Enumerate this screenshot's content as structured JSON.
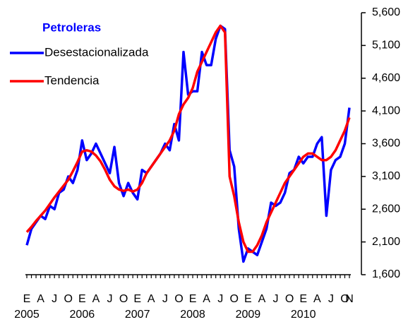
{
  "chart_data": {
    "type": "line",
    "title": "Petroleras",
    "categories": [
      "E",
      null,
      null,
      "A",
      null,
      null,
      "J",
      null,
      null,
      "O",
      null,
      null,
      "E",
      null,
      null,
      "A",
      null,
      null,
      "J",
      null,
      null,
      "O",
      null,
      null,
      "E",
      null,
      null,
      "A",
      null,
      null,
      "J",
      null,
      null,
      "O",
      null,
      null,
      "E",
      null,
      null,
      "A",
      null,
      null,
      "J",
      null,
      null,
      "O",
      null,
      null,
      "E",
      null,
      null,
      "A",
      null,
      null,
      "J",
      null,
      null,
      "O",
      null,
      null,
      "E",
      null,
      null,
      "A",
      null,
      null,
      "J",
      null,
      null,
      "O",
      "N"
    ],
    "years": [
      "2005",
      "2006",
      "2007",
      "2008",
      "2009",
      "2010"
    ],
    "series": [
      {
        "name": "Desestacionalizada",
        "color": "#0000ff",
        "values": [
          2050,
          2300,
          2400,
          2500,
          2450,
          2650,
          2600,
          2850,
          2900,
          3100,
          3000,
          3200,
          3650,
          3350,
          3450,
          3600,
          3450,
          3300,
          3150,
          3550,
          3000,
          2800,
          3000,
          2850,
          2750,
          3200,
          3150,
          3250,
          3350,
          3450,
          3600,
          3500,
          3900,
          3650,
          5000,
          4350,
          4400,
          4400,
          5000,
          4800,
          4800,
          5200,
          5400,
          5350,
          3500,
          3250,
          2300,
          1800,
          2000,
          1950,
          1900,
          2100,
          2300,
          2700,
          2650,
          2700,
          2850,
          3150,
          3200,
          3400,
          3300,
          3400,
          3400,
          3600,
          3700,
          2500,
          3200,
          3350,
          3400,
          3600,
          4150
        ]
      },
      {
        "name": "Tendencia",
        "color": "#ff0000",
        "values": [
          2250,
          2330,
          2420,
          2500,
          2580,
          2680,
          2780,
          2870,
          2960,
          3050,
          3180,
          3320,
          3480,
          3500,
          3480,
          3420,
          3330,
          3200,
          3050,
          2950,
          2900,
          2880,
          2900,
          2870,
          2900,
          3000,
          3150,
          3250,
          3350,
          3450,
          3550,
          3650,
          3800,
          4050,
          4200,
          4300,
          4450,
          4700,
          4850,
          5000,
          5150,
          5300,
          5400,
          5300,
          3100,
          2800,
          2400,
          2100,
          1950,
          1950,
          2050,
          2200,
          2400,
          2550,
          2700,
          2850,
          3000,
          3100,
          3200,
          3300,
          3400,
          3450,
          3450,
          3400,
          3350,
          3350,
          3400,
          3500,
          3650,
          3800,
          4000
        ]
      }
    ],
    "ylim": [
      1600,
      5600
    ],
    "yticks": [
      {
        "value": 1600,
        "label": "1,600"
      },
      {
        "value": 2100,
        "label": "2,100"
      },
      {
        "value": 2600,
        "label": "2,600"
      },
      {
        "value": 3100,
        "label": "3,100"
      },
      {
        "value": 3600,
        "label": "3,600"
      },
      {
        "value": 4100,
        "label": "4,100"
      },
      {
        "value": 4600,
        "label": "4,600"
      },
      {
        "value": 5100,
        "label": "5,100"
      },
      {
        "value": 5600,
        "label": "5,600"
      }
    ],
    "y_axis_side": "right",
    "legend": "upper left"
  }
}
